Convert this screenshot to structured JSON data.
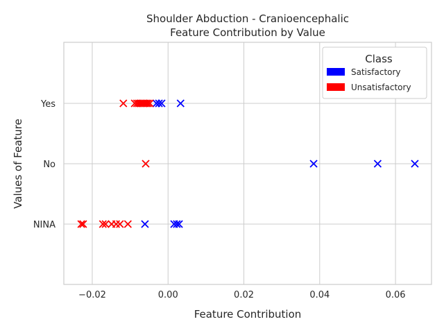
{
  "chart_data": {
    "type": "scatter",
    "title": "Shoulder Abduction - Cranioencephalic",
    "subtitle": "Feature Contribution by Value",
    "xlabel": "Feature Contribution",
    "ylabel": "Values of Feature",
    "xlim": [
      -0.0275,
      0.0695
    ],
    "x_ticks": [
      "−0.02",
      "0.00",
      "0.02",
      "0.04",
      "0.06"
    ],
    "x_tick_values": [
      -0.02,
      0.0,
      0.02,
      0.04,
      0.06
    ],
    "categories": [
      "NINA",
      "No",
      "Yes"
    ],
    "grid": true,
    "marker": "x",
    "legend": {
      "title": "Class",
      "placement": "top-right",
      "entries": [
        {
          "label": "Satisfactory",
          "color": "#0000ff"
        },
        {
          "label": "Unsatisfactory",
          "color": "#ff0000"
        }
      ]
    },
    "series": [
      {
        "name": "Satisfactory",
        "color": "#0000ff",
        "points": [
          {
            "x": -0.0031,
            "y": "Yes"
          },
          {
            "x": -0.0024,
            "y": "Yes"
          },
          {
            "x": -0.0017,
            "y": "Yes"
          },
          {
            "x": 0.0033,
            "y": "Yes"
          },
          {
            "x": 0.0384,
            "y": "No"
          },
          {
            "x": 0.0553,
            "y": "No"
          },
          {
            "x": 0.0651,
            "y": "No"
          },
          {
            "x": -0.0061,
            "y": "NINA"
          },
          {
            "x": 0.0016,
            "y": "NINA"
          },
          {
            "x": 0.0023,
            "y": "NINA"
          },
          {
            "x": 0.0029,
            "y": "NINA"
          }
        ]
      },
      {
        "name": "Unsatisfactory",
        "color": "#ff0000",
        "points": [
          {
            "x": -0.0118,
            "y": "Yes"
          },
          {
            "x": -0.0088,
            "y": "Yes"
          },
          {
            "x": -0.0082,
            "y": "Yes"
          },
          {
            "x": -0.0077,
            "y": "Yes"
          },
          {
            "x": -0.0073,
            "y": "Yes"
          },
          {
            "x": -0.0069,
            "y": "Yes"
          },
          {
            "x": -0.0065,
            "y": "Yes"
          },
          {
            "x": -0.0061,
            "y": "Yes"
          },
          {
            "x": -0.0057,
            "y": "Yes"
          },
          {
            "x": -0.0053,
            "y": "Yes"
          },
          {
            "x": -0.0048,
            "y": "Yes"
          },
          {
            "x": -0.0059,
            "y": "No"
          },
          {
            "x": -0.0229,
            "y": "NINA"
          },
          {
            "x": -0.0224,
            "y": "NINA"
          },
          {
            "x": -0.0172,
            "y": "NINA"
          },
          {
            "x": -0.0165,
            "y": "NINA"
          },
          {
            "x": -0.0149,
            "y": "NINA"
          },
          {
            "x": -0.0137,
            "y": "NINA"
          },
          {
            "x": -0.0127,
            "y": "NINA"
          },
          {
            "x": -0.0106,
            "y": "NINA"
          }
        ]
      }
    ]
  }
}
